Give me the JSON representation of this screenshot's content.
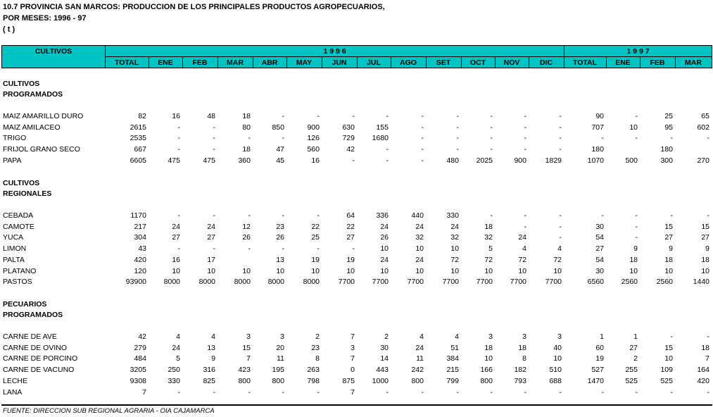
{
  "header": {
    "title_lines": [
      "10.7  PROVINCIA SAN MARCOS: PRODUCCION DE LOS PRINCIPALES PRODUCTOS AGROPECUARIOS,",
      "POR  MESES: 1996 -  97",
      "( t )"
    ]
  },
  "table": {
    "first_column": "CULTIVOS",
    "year_groups": [
      {
        "label": "1 9 9 6",
        "columns": [
          "TOTAL",
          "ENE",
          "FEB",
          "MAR",
          "ABR",
          "MAY",
          "JUN",
          "JUL",
          "AGO",
          "SET",
          "OCT",
          "NOV",
          "DIC"
        ]
      },
      {
        "label": "1 9 9 7",
        "columns": [
          "TOTAL",
          "ENE",
          "FEB",
          "MAR"
        ]
      }
    ],
    "sections": [
      {
        "label_lines": [
          "CULTIVOS",
          "PROGRAMADOS"
        ],
        "rows": [
          {
            "name": "MAIZ AMARILLO DURO",
            "cells": [
              82,
              16,
              48,
              18,
              "-",
              "-",
              "-",
              "-",
              "-",
              "-",
              "-",
              "-",
              "-",
              90,
              "-",
              25,
              65
            ]
          },
          {
            "name": "MAIZ AMILACEO",
            "cells": [
              2615,
              "-",
              "-",
              80,
              850,
              900,
              630,
              155,
              "-",
              "-",
              "-",
              "-",
              "-",
              707,
              10,
              95,
              602
            ]
          },
          {
            "name": "TRIGO",
            "cells": [
              2535,
              "-",
              "-",
              "-",
              "-",
              126,
              729,
              1680,
              "-",
              "-",
              "-",
              "-",
              "-",
              "-",
              "-",
              "-",
              "-"
            ]
          },
          {
            "name": "FRIJOL GRANO SECO",
            "cells": [
              667,
              "-",
              "-",
              18,
              47,
              560,
              42,
              "-",
              "-",
              "-",
              "-",
              "-",
              "-",
              180,
              null,
              180,
              null
            ]
          },
          {
            "name": "PAPA",
            "cells": [
              6605,
              475,
              475,
              360,
              45,
              16,
              "-",
              "-",
              "-",
              480,
              2025,
              900,
              1829,
              1070,
              500,
              300,
              270
            ]
          }
        ]
      },
      {
        "label_lines": [
          "CULTIVOS",
          "REGIONALES"
        ],
        "rows": [
          {
            "name": "CEBADA",
            "cells": [
              1170,
              "-",
              "-",
              "-",
              "-",
              "-",
              64,
              336,
              440,
              330,
              "-",
              "-",
              "-",
              "-",
              "-",
              "-",
              "-"
            ]
          },
          {
            "name": "CAMOTE",
            "cells": [
              217,
              24,
              24,
              12,
              23,
              22,
              22,
              24,
              24,
              24,
              18,
              "-",
              "-",
              30,
              "-",
              15,
              15
            ]
          },
          {
            "name": "YUCA",
            "cells": [
              304,
              27,
              27,
              26,
              26,
              25,
              27,
              26,
              32,
              32,
              32,
              24,
              "-",
              54,
              "-",
              27,
              27
            ]
          },
          {
            "name": "LIMON",
            "cells": [
              43,
              "-",
              "-",
              "-",
              "-",
              "-",
              "-",
              10,
              10,
              10,
              5,
              4,
              4,
              27,
              9,
              9,
              9
            ]
          },
          {
            "name": "PALTA",
            "cells": [
              420,
              16,
              17,
              null,
              13,
              19,
              19,
              24,
              24,
              72,
              72,
              72,
              72,
              54,
              18,
              18,
              18
            ]
          },
          {
            "name": "PLATANO",
            "cells": [
              120,
              10,
              10,
              10,
              10,
              10,
              10,
              10,
              10,
              10,
              10,
              10,
              10,
              30,
              10,
              10,
              10
            ]
          },
          {
            "name": "PASTOS",
            "cells": [
              93900,
              8000,
              8000,
              8000,
              8000,
              8000,
              7700,
              7700,
              7700,
              7700,
              7700,
              7700,
              7700,
              6560,
              2560,
              2560,
              1440
            ]
          }
        ]
      },
      {
        "label_lines": [
          "PECUARIOS",
          "PROGRAMADOS"
        ],
        "rows": [
          {
            "name": "CARNE DE AVE",
            "cells": [
              42,
              4,
              4,
              3,
              3,
              2,
              7,
              2,
              4,
              4,
              3,
              3,
              3,
              1,
              1,
              "-",
              "-"
            ]
          },
          {
            "name": "CARNE DE OVINO",
            "cells": [
              279,
              24,
              13,
              15,
              20,
              23,
              3,
              30,
              24,
              51,
              18,
              18,
              40,
              60,
              27,
              15,
              18
            ]
          },
          {
            "name": "CARNE DE PORCINO",
            "cells": [
              484,
              5,
              9,
              7,
              11,
              8,
              7,
              14,
              11,
              384,
              10,
              8,
              10,
              19,
              2,
              10,
              7
            ]
          },
          {
            "name": "CARNE DE VACUNO",
            "cells": [
              3205,
              250,
              316,
              423,
              195,
              263,
              0,
              443,
              242,
              215,
              166,
              182,
              510,
              527,
              255,
              109,
              164
            ]
          },
          {
            "name": "LECHE",
            "cells": [
              9308,
              330,
              825,
              800,
              800,
              798,
              875,
              1000,
              800,
              799,
              800,
              793,
              688,
              1470,
              525,
              525,
              420
            ]
          },
          {
            "name": "LANA",
            "cells": [
              7,
              "-",
              "-",
              "-",
              "-",
              "-",
              7,
              "-",
              "-",
              "-",
              "-",
              "-",
              "-",
              "-",
              "-",
              "-",
              "-"
            ]
          }
        ]
      }
    ]
  },
  "footer": {
    "source": "FUENTE: DIRECCION SUB REGIONAL AGRARIA - OIA CAJAMARCA"
  }
}
